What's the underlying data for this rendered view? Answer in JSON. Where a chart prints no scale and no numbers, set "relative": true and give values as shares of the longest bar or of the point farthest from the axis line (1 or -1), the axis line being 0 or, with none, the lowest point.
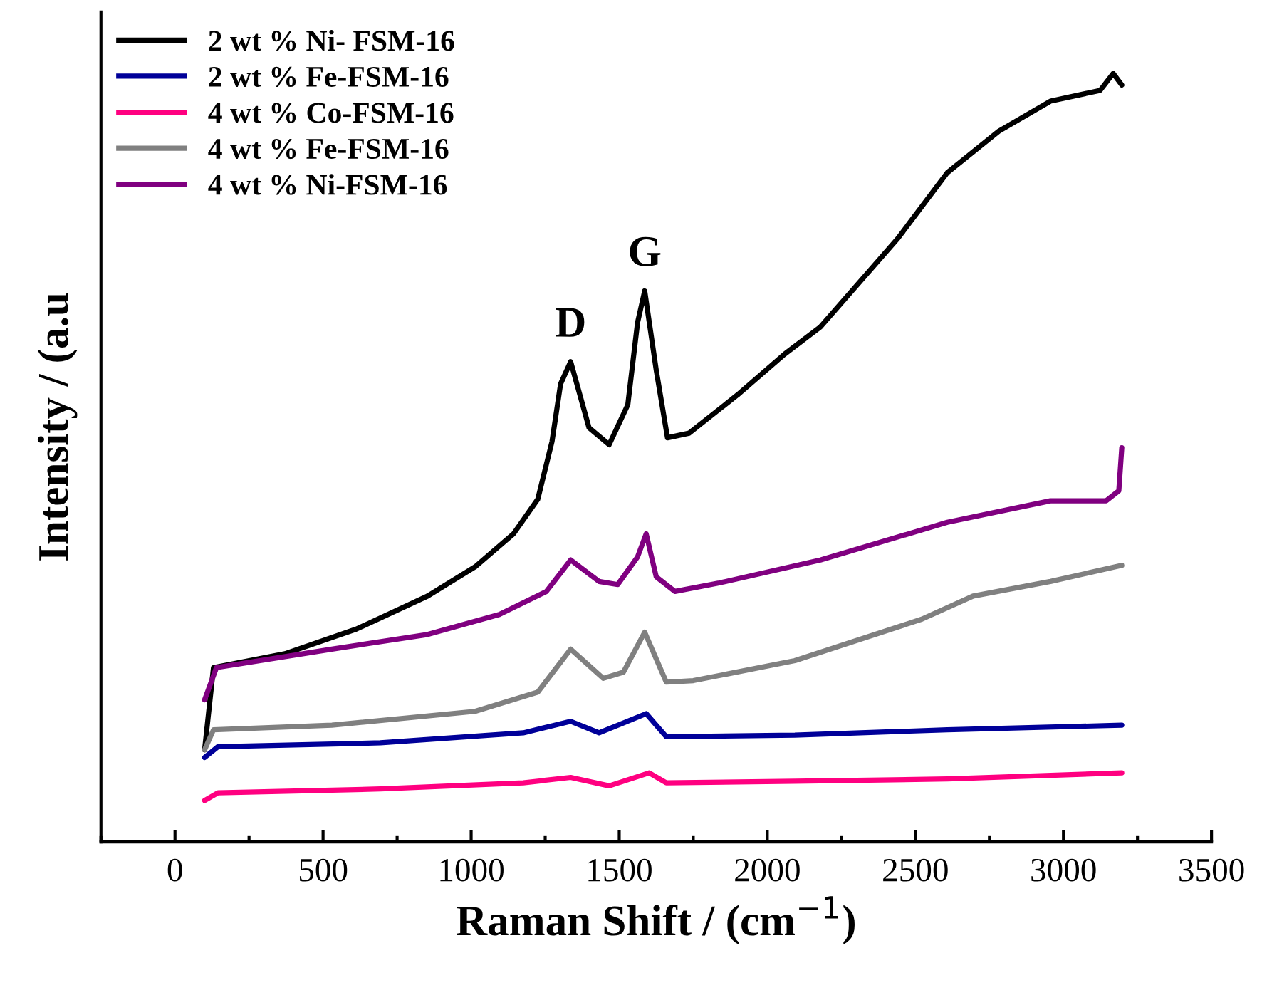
{
  "chart_data": {
    "type": "line",
    "relative": true,
    "xlabel": "Raman Shift / (cm$^{−1}$)",
    "ylabel": "Intensity / (a.u",
    "xlim": [
      -250,
      3500
    ],
    "xticks": [
      {
        "value": -250,
        "label": null
      },
      0,
      {
        "value": 250,
        "label": null
      },
      500,
      {
        "value": 750,
        "label": null
      },
      1000,
      {
        "value": 1250,
        "label": null
      },
      1500,
      {
        "value": 1750,
        "label": null
      },
      2000,
      {
        "value": 2250,
        "label": null
      },
      2500,
      {
        "value": 2750,
        "label": null
      },
      3000,
      {
        "value": 3250,
        "label": null
      },
      3500
    ],
    "legend": "top left",
    "grid": false,
    "marker": "none",
    "line_style": "solid",
    "annotations": [
      {
        "text": "D",
        "x": 1336,
        "y": 0.625
      },
      {
        "text": "G",
        "x": 1586,
        "y": 0.717
      }
    ],
    "series": [
      {
        "name": "2 wt % Ni- FSM-16",
        "color": "#000000",
        "x": [
          100,
          130,
          371,
          612,
          853,
          1013,
          1143,
          1225,
          1273,
          1302,
          1336,
          1398,
          1466,
          1529,
          1562,
          1586,
          1625,
          1663,
          1736,
          1900,
          2059,
          2179,
          2440,
          2608,
          2782,
          2956,
          3124,
          3168,
          3197
        ],
        "values": [
          0.12,
          0.227,
          0.245,
          0.277,
          0.32,
          0.358,
          0.401,
          0.446,
          0.521,
          0.596,
          0.625,
          0.539,
          0.517,
          0.569,
          0.676,
          0.717,
          0.614,
          0.526,
          0.532,
          0.582,
          0.635,
          0.67,
          0.785,
          0.871,
          0.925,
          0.964,
          0.978,
          1.0,
          0.985
        ]
      },
      {
        "name": "2 wt % Fe-FSM-16",
        "color": "#000099",
        "x": [
          100,
          145,
          694,
          1176,
          1336,
          1432,
          1591,
          1659,
          2093,
          2608,
          3197
        ],
        "values": [
          0.11,
          0.124,
          0.129,
          0.142,
          0.157,
          0.142,
          0.167,
          0.137,
          0.139,
          0.146,
          0.152
        ]
      },
      {
        "name": "4 wt % Co-FSM-16",
        "color": "#ff0080",
        "x": [
          100,
          145,
          694,
          1176,
          1336,
          1466,
          1601,
          1659,
          2093,
          2608,
          3197
        ],
        "values": [
          0.054,
          0.064,
          0.069,
          0.077,
          0.084,
          0.073,
          0.09,
          0.077,
          0.079,
          0.082,
          0.09
        ]
      },
      {
        "name": "4 wt % Fe-FSM-16",
        "color": "#808080",
        "x": [
          100,
          130,
          530,
          1013,
          1225,
          1336,
          1446,
          1514,
          1586,
          1659,
          1750,
          2093,
          2522,
          2695,
          2956,
          3197
        ],
        "values": [
          0.12,
          0.146,
          0.152,
          0.17,
          0.195,
          0.251,
          0.213,
          0.221,
          0.273,
          0.208,
          0.21,
          0.236,
          0.29,
          0.32,
          0.339,
          0.36
        ]
      },
      {
        "name": "4 wt % Ni-FSM-16",
        "color": "#800080",
        "x": [
          100,
          140,
          530,
          853,
          1095,
          1254,
          1336,
          1432,
          1495,
          1562,
          1591,
          1625,
          1688,
          1837,
          2179,
          2608,
          2956,
          3144,
          3187,
          3197
        ],
        "values": [
          0.185,
          0.227,
          0.251,
          0.27,
          0.296,
          0.326,
          0.367,
          0.339,
          0.335,
          0.371,
          0.401,
          0.345,
          0.326,
          0.337,
          0.367,
          0.416,
          0.444,
          0.444,
          0.457,
          0.513
        ]
      }
    ]
  }
}
